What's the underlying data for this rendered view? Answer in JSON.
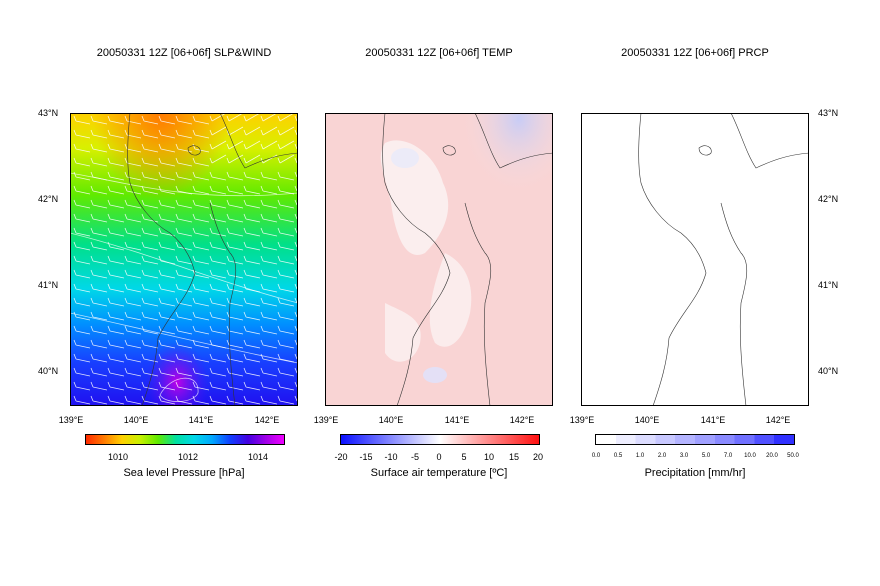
{
  "panels": [
    {
      "title": "20050331 12Z [06+06f] SLP&WIND"
    },
    {
      "title": "20050331 12Z [06+06f] TEMP"
    },
    {
      "title": "20050331 12Z [06+06f] PRCP"
    }
  ],
  "axes": {
    "lat_ticks": [
      "43°N",
      "42°N",
      "41°N",
      "40°N"
    ],
    "lon_ticks": [
      "139°E",
      "140°E",
      "141°E",
      "142°E"
    ]
  },
  "colorbars": [
    {
      "label": "Sea level Pressure [hPa]",
      "ticks": [
        "1010",
        "1012",
        "1014"
      ],
      "colors": [
        "#ff2a00",
        "#ff7a00",
        "#ffd000",
        "#c8f000",
        "#60ea00",
        "#00e0a0",
        "#00d8e8",
        "#00a8ff",
        "#1040ff",
        "#4400e0",
        "#a000e8",
        "#f000ff"
      ]
    },
    {
      "label": "Surface air temperature [ºC]",
      "ticks": [
        "-20",
        "-15",
        "-10",
        "-5",
        "0",
        "5",
        "10",
        "15",
        "20"
      ],
      "colors": [
        "#0a10ff",
        "#ffffff",
        "#ff1010"
      ]
    },
    {
      "label": "Precipitation [mm/hr]",
      "ticks": [
        "0.0",
        "0.5",
        "1.0",
        "2.0",
        "3.0",
        "5.0",
        "7.0",
        "10.0",
        "20.0",
        "50.0"
      ],
      "colors": [
        "#ffffff",
        "#eeeeff",
        "#dcdcff",
        "#c8c8ff",
        "#b4b4ff",
        "#a0a0ff",
        "#8a8aff",
        "#7070ff",
        "#5050ff",
        "#3030ff"
      ]
    }
  ],
  "chart_data": [
    {
      "type": "heatmap",
      "title": "20050331 12Z [06+06f] SLP&WIND",
      "variable": "Sea level Pressure [hPa]",
      "xlim": [
        139,
        142.5
      ],
      "ylim": [
        39.6,
        43
      ],
      "colorbar_range": [
        1009,
        1015
      ],
      "description_values": {
        "north_min": 1009.5,
        "south_max": 1014.8
      },
      "wind_barbs": true,
      "contours": true
    },
    {
      "type": "heatmap",
      "title": "20050331 12Z [06+06f] TEMP",
      "variable": "Surface air temperature [ºC]",
      "xlim": [
        139,
        142.5
      ],
      "ylim": [
        39.6,
        43
      ],
      "colorbar_range": [
        -20,
        20
      ]
    },
    {
      "type": "heatmap",
      "title": "20050331 12Z [06+06f] PRCP",
      "variable": "Precipitation [mm/hr]",
      "xlim": [
        139,
        142.5
      ],
      "ylim": [
        39.6,
        43
      ],
      "colorbar_range": [
        0,
        50
      ]
    }
  ]
}
